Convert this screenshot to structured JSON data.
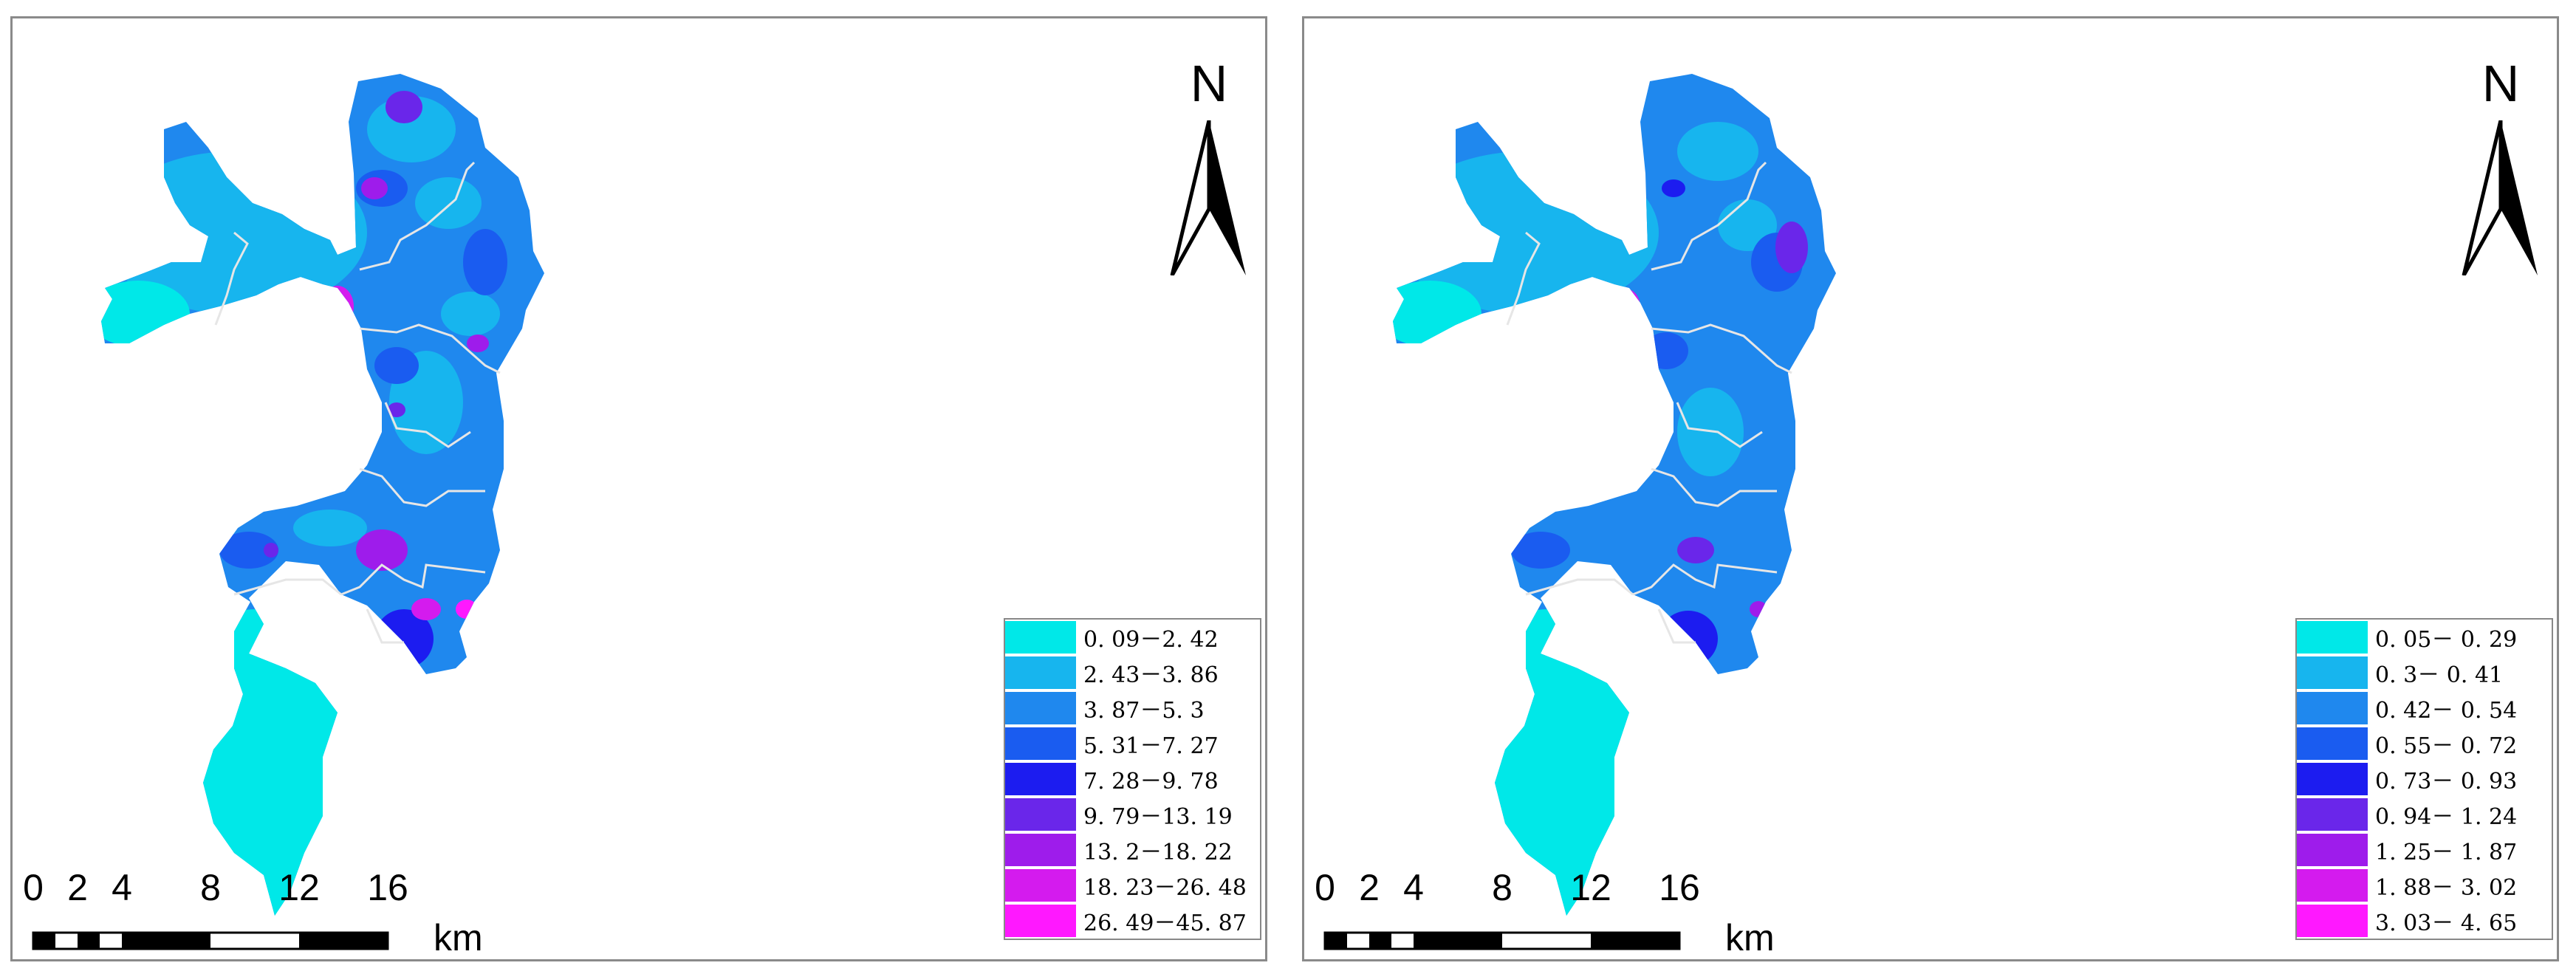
{
  "north_label": "N",
  "scale_bar": {
    "ticks": [
      "0",
      "2",
      "4",
      "8",
      "12",
      "16"
    ],
    "unit": "km"
  },
  "colors": {
    "classes": [
      "#00e8e8",
      "#17b5ee",
      "#1f88ee",
      "#1a5cf0",
      "#1c1cf0",
      "#6a26ea",
      "#9e1ceb",
      "#d41bee",
      "#ff18ff"
    ],
    "boundary": "#e6e6e6",
    "frame": "#8a8a8a"
  },
  "maps": [
    {
      "legend": [
        "0. 09－2. 42",
        "2. 43－3. 86",
        "3. 87－5. 3",
        "5. 31－7. 27",
        "7. 28－9. 78",
        "9. 79－13. 19",
        "13. 2－18. 22",
        "18. 23－26. 48",
        "26. 49－45. 87"
      ]
    },
    {
      "legend": [
        "0. 05－ 0. 29",
        "0. 3－ 0. 41",
        "0. 42－ 0. 54",
        "0. 55－ 0. 72",
        "0. 73－ 0. 93",
        "0. 94－ 1. 24",
        "1. 25－ 1. 87",
        "1. 88－ 3. 02",
        "3. 03－ 4. 65"
      ]
    }
  ]
}
